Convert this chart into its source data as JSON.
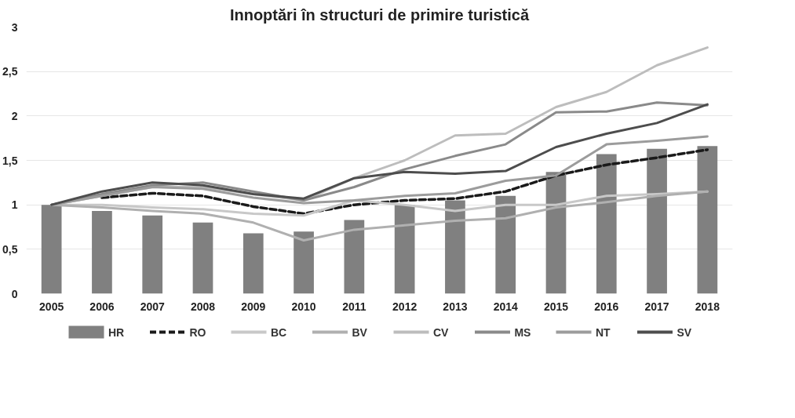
{
  "chart_data": {
    "type": "bar",
    "title": "Innoptări în structuri de primire turistică",
    "categories": [
      "2005",
      "2006",
      "2007",
      "2008",
      "2009",
      "2010",
      "2011",
      "2012",
      "2013",
      "2014",
      "2015",
      "2016",
      "2017",
      "2018"
    ],
    "series": [
      {
        "name": "HR",
        "color": "#808080",
        "values": [
          1,
          0.93,
          0.88,
          0.8,
          0.68,
          0.7,
          0.83,
          1.0,
          1.05,
          1.1,
          1.37,
          1.57,
          1.63,
          1.66
        ]
      },
      {
        "name": "RO",
        "type": "line",
        "line_style": "dashed",
        "color": "#1a1a1a",
        "values": [
          null,
          1.08,
          1.13,
          1.1,
          0.98,
          0.9,
          1.0,
          1.05,
          1.07,
          1.15,
          1.33,
          1.45,
          1.53,
          1.62
        ]
      },
      {
        "name": "BC",
        "type": "line",
        "color": "#c8c8c8",
        "values": [
          1,
          1.0,
          0.97,
          0.95,
          0.9,
          0.88,
          1.05,
          1.0,
          0.93,
          1.0,
          1.0,
          1.1,
          1.12,
          1.15
        ]
      },
      {
        "name": "BV",
        "type": "line",
        "color": "#b0b0b0",
        "values": [
          1,
          0.97,
          0.93,
          0.9,
          0.8,
          0.6,
          0.72,
          0.77,
          0.82,
          0.85,
          0.97,
          1.03,
          1.1,
          1.15
        ]
      },
      {
        "name": "CV",
        "type": "line",
        "color": "#bdbdbd",
        "values": [
          1,
          1.1,
          1.2,
          1.2,
          1.12,
          1.05,
          1.3,
          1.5,
          1.78,
          1.8,
          2.1,
          2.27,
          2.57,
          2.77
        ]
      },
      {
        "name": "MS",
        "type": "line",
        "color": "#8a8a8a",
        "values": [
          1,
          1.12,
          1.22,
          1.25,
          1.15,
          1.05,
          1.2,
          1.4,
          1.55,
          1.68,
          2.04,
          2.05,
          2.15,
          2.12
        ]
      },
      {
        "name": "NT",
        "type": "line",
        "color": "#9c9c9c",
        "values": [
          1,
          1.1,
          1.2,
          1.18,
          1.08,
          1.02,
          1.05,
          1.1,
          1.13,
          1.27,
          1.33,
          1.68,
          1.72,
          1.77
        ]
      },
      {
        "name": "SV",
        "type": "line",
        "color": "#4d4d4d",
        "values": [
          1,
          1.15,
          1.25,
          1.22,
          1.12,
          1.07,
          1.3,
          1.37,
          1.35,
          1.38,
          1.65,
          1.8,
          1.92,
          2.13
        ]
      }
    ],
    "ylim": [
      0,
      3
    ],
    "yticks": [
      0,
      {
        "value": 0.5,
        "label": "0,5"
      },
      1,
      {
        "value": 1.5,
        "label": "1,5"
      },
      2,
      {
        "value": 2.5,
        "label": "2,5"
      },
      3
    ],
    "grid": "y",
    "legend": "bottom"
  }
}
